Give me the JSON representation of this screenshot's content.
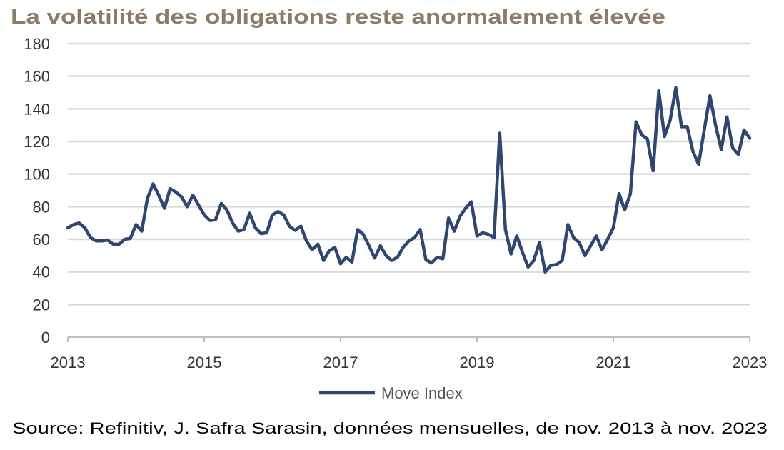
{
  "chart_data": {
    "type": "line",
    "title": "La volatilité des obligations reste anormalement élevée",
    "xlabel": "",
    "ylabel": "",
    "ylim": [
      0,
      180
    ],
    "xlim": [
      2013,
      2023
    ],
    "yticks": [
      "0",
      "20",
      "40",
      "60",
      "80",
      "100",
      "120",
      "140",
      "160",
      "180"
    ],
    "xticks": [
      "2013",
      "2015",
      "2017",
      "2019",
      "2021",
      "2023"
    ],
    "grid": true,
    "legend_position": "bottom-center",
    "source": "Source: Refinitiv, J. Safra Sarasin, données mensuelles, de nov. 2013 à nov. 2023",
    "x_start": 2013,
    "x_step_years": 0.0833333,
    "line_color": "#2e4670",
    "series": [
      {
        "name": "Move Index",
        "values": [
          67,
          69,
          70,
          67,
          61,
          59,
          59,
          59.5,
          57,
          57,
          60,
          60.5,
          69,
          65,
          85,
          94,
          87,
          79,
          91,
          89,
          86,
          80,
          87,
          81,
          75,
          71.5,
          72,
          82,
          78,
          70,
          65,
          66,
          76,
          67,
          63.5,
          64,
          75,
          77,
          75,
          68,
          65.5,
          68,
          59,
          53.5,
          57,
          47,
          53,
          55,
          45,
          49,
          46,
          66,
          63,
          56,
          48.5,
          56,
          50,
          47,
          49,
          55,
          59,
          61,
          66,
          47.5,
          45.5,
          49,
          48,
          73,
          65,
          74,
          79,
          83,
          62,
          64,
          63,
          61,
          125,
          66,
          51,
          62,
          52,
          43,
          47,
          58,
          40,
          44,
          44.5,
          47,
          69,
          61,
          58,
          50,
          56,
          62,
          53.5,
          60,
          67,
          88,
          78,
          88,
          132,
          124,
          121.5,
          102,
          151,
          123,
          133,
          153,
          129,
          129,
          114,
          106,
          127,
          148,
          130,
          115,
          135,
          116,
          112,
          127,
          122
        ]
      }
    ]
  }
}
